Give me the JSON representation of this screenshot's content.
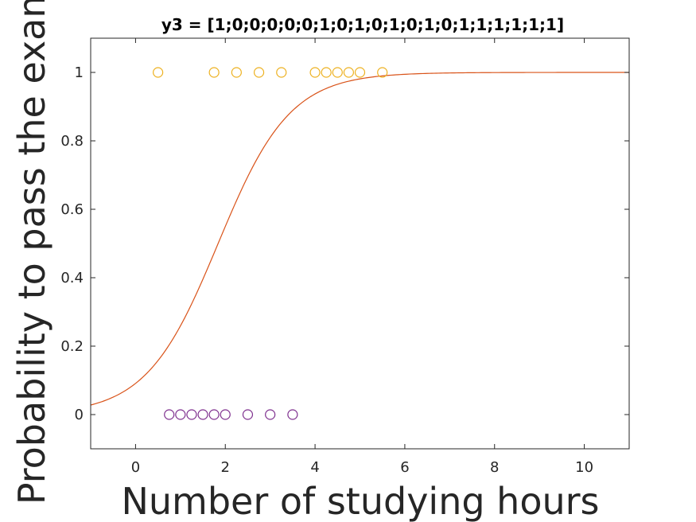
{
  "chart_data": {
    "type": "scatter",
    "title": "y3 = [1;0;0;0;0;0;1;0;1;0;1;0;1;0;1;1;1;1;1;1]",
    "xlabel": "Number of studying hours",
    "ylabel": "Probability to pass the exam",
    "xlim": [
      -1,
      11
    ],
    "ylim": [
      -0.1,
      1.1
    ],
    "xticks": [
      0,
      2,
      4,
      6,
      8,
      10
    ],
    "yticks": [
      0,
      0.2,
      0.4,
      0.6,
      0.8,
      1
    ],
    "xtick_labels": [
      "0",
      "2",
      "4",
      "6",
      "8",
      "10"
    ],
    "ytick_labels": [
      "0",
      "0.2",
      "0.4",
      "0.6",
      "0.8",
      "1"
    ],
    "grid": false,
    "series": [
      {
        "kind": "scatter",
        "marker": "open-circle",
        "color": "#EDB120",
        "x": [
          0.5,
          1.75,
          2.25,
          2.75,
          3.25,
          4.0,
          4.25,
          4.5,
          4.75,
          5.0,
          5.5
        ],
        "y": [
          1,
          1,
          1,
          1,
          1,
          1,
          1,
          1,
          1,
          1,
          1
        ]
      },
      {
        "kind": "scatter",
        "marker": "open-circle",
        "color": "#7E2F8E",
        "x": [
          0.75,
          1.0,
          1.25,
          1.5,
          1.75,
          2.0,
          2.5,
          3.0,
          3.5
        ],
        "y": [
          0,
          0,
          0,
          0,
          0,
          0,
          0,
          0,
          0
        ]
      },
      {
        "kind": "line",
        "color": "#D95319",
        "function": "logistic",
        "intercept": -2.3,
        "slope": 1.25,
        "x_range": [
          -1,
          11
        ]
      }
    ]
  }
}
